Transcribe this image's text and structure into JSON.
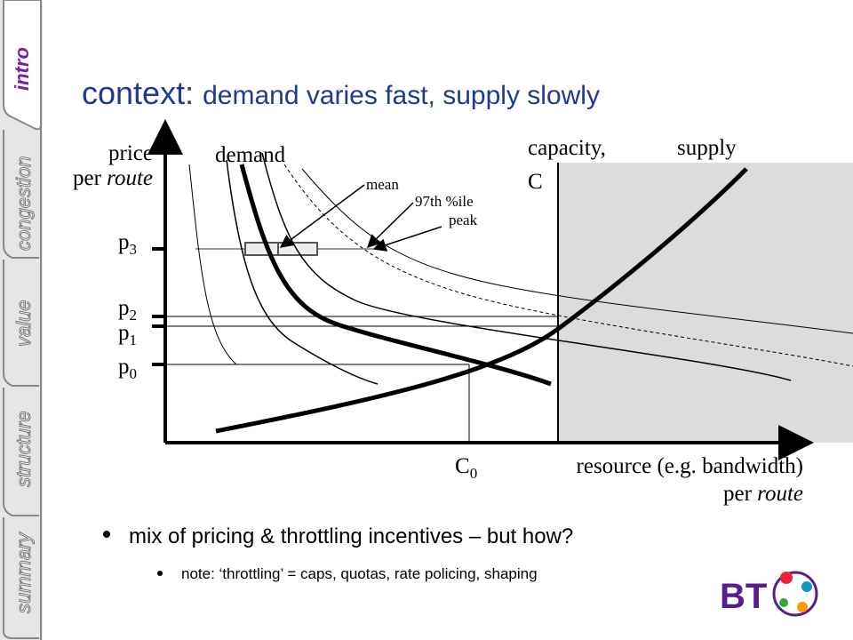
{
  "sidebar": {
    "tabs": [
      "intro",
      "congestion",
      "value",
      "structure",
      "summary"
    ]
  },
  "title": {
    "lead": "context:",
    "rest": "demand varies fast, supply slowly"
  },
  "diagram": {
    "y_axis_label": {
      "line1": "price",
      "line2_prefix": "per",
      "line2_italic": "route"
    },
    "x_axis_label": {
      "line1": "resource (e.g. bandwidth)",
      "line2_prefix": "per",
      "line2_italic": "route"
    },
    "curve_labels": {
      "demand": "demand",
      "supply": "supply",
      "capacity": "capacity,",
      "capacity_symbol": "C",
      "mean": "mean",
      "percentile": "97th %ile",
      "peak": "peak"
    },
    "price_levels": [
      {
        "base": "p",
        "sub": "3"
      },
      {
        "base": "p",
        "sub": "2"
      },
      {
        "base": "p",
        "sub": "1"
      },
      {
        "base": "p",
        "sub": "0"
      }
    ],
    "capacity_point": {
      "base": "C",
      "sub": "0"
    }
  },
  "bullets": [
    "mix of pricing & throttling incentives – but how?",
    "note: ‘throttling’ = caps, quotas, rate policing, shaping"
  ],
  "logo": "BT"
}
